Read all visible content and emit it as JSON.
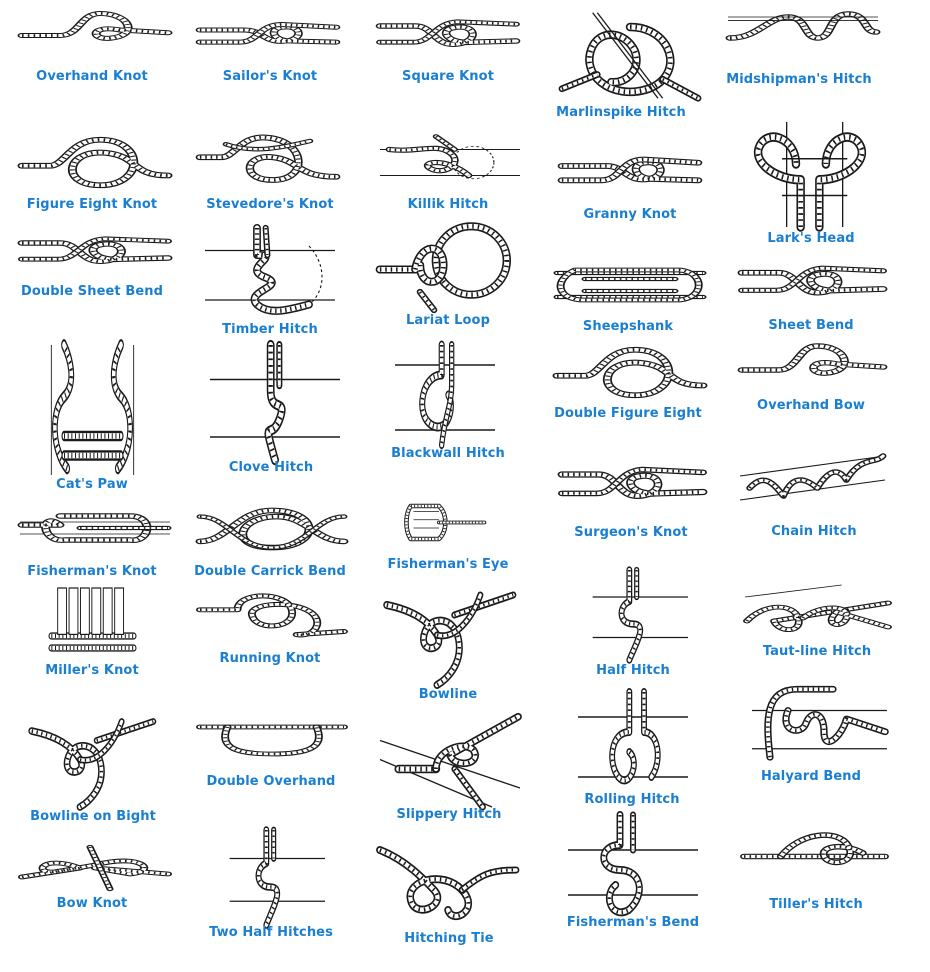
{
  "page_title": "",
  "knots": [
    {
      "label": "Overhand Knot",
      "icon": "overhand-knot-icon"
    },
    {
      "label": "Sailor's Knot",
      "icon": "sailors-knot-icon"
    },
    {
      "label": "Square Knot",
      "icon": "square-knot-icon"
    },
    {
      "label": "Marlinspike Hitch",
      "icon": "marlinspike-hitch-icon"
    },
    {
      "label": "Midshipman's Hitch",
      "icon": "midshipmans-hitch-icon"
    },
    {
      "label": "Figure Eight Knot",
      "icon": "figure-eight-knot-icon"
    },
    {
      "label": "Stevedore's Knot",
      "icon": "stevedores-knot-icon"
    },
    {
      "label": "Killik Hitch",
      "icon": "killik-hitch-icon"
    },
    {
      "label": "Granny Knot",
      "icon": "granny-knot-icon"
    },
    {
      "label": "Lark's Head",
      "icon": "larks-head-icon"
    },
    {
      "label": "Double Sheet Bend",
      "icon": "double-sheet-bend-icon"
    },
    {
      "label": "Timber Hitch",
      "icon": "timber-hitch-icon"
    },
    {
      "label": "Lariat Loop",
      "icon": "lariat-loop-icon"
    },
    {
      "label": "Sheepshank",
      "icon": "sheepshank-icon"
    },
    {
      "label": "Sheet Bend",
      "icon": "sheet-bend-icon"
    },
    {
      "label": "Cat's Paw",
      "icon": "cats-paw-icon"
    },
    {
      "label": "Clove Hitch",
      "icon": "clove-hitch-icon"
    },
    {
      "label": "Blackwall Hitch",
      "icon": "blackwall-hitch-icon"
    },
    {
      "label": "Double Figure Eight",
      "icon": "double-figure-eight-icon"
    },
    {
      "label": "Overhand Bow",
      "icon": "overhand-bow-icon"
    },
    {
      "label": "Fisherman's Knot",
      "icon": "fishermans-knot-icon"
    },
    {
      "label": "Double Carrick Bend",
      "icon": "double-carrick-bend-icon"
    },
    {
      "label": "Fisherman's Eye",
      "icon": "fishermans-eye-icon"
    },
    {
      "label": "Surgeon's Knot",
      "icon": "surgeons-knot-icon"
    },
    {
      "label": "Chain Hitch",
      "icon": "chain-hitch-icon"
    },
    {
      "label": "Miller's Knot",
      "icon": "millers-knot-icon"
    },
    {
      "label": "Running Knot",
      "icon": "running-knot-icon"
    },
    {
      "label": "Bowline",
      "icon": "bowline-icon"
    },
    {
      "label": "Half Hitch",
      "icon": "half-hitch-icon"
    },
    {
      "label": "Taut-line Hitch",
      "icon": "taut-line-hitch-icon"
    },
    {
      "label": "Bowline on Bight",
      "icon": "bowline-on-bight-icon"
    },
    {
      "label": "Double Overhand",
      "icon": "double-overhand-icon"
    },
    {
      "label": "Slippery Hitch",
      "icon": "slippery-hitch-icon"
    },
    {
      "label": "Rolling Hitch",
      "icon": "rolling-hitch-icon"
    },
    {
      "label": "Halyard Bend",
      "icon": "halyard-bend-icon"
    },
    {
      "label": "Bow Knot",
      "icon": "bow-knot-icon"
    },
    {
      "label": "Two Half Hitches",
      "icon": "two-half-hitches-icon"
    },
    {
      "label": "Hitching Tie",
      "icon": "hitching-tie-icon"
    },
    {
      "label": "Fisherman's Bend",
      "icon": "fishermans-bend-icon"
    },
    {
      "label": "Tiller's Hitch",
      "icon": "tillers-hitch-icon"
    }
  ],
  "colors": {
    "label": "#1a7fd0",
    "rope": "#1a1a1a",
    "rope_fill": "#ffffff",
    "background": "#ffffff"
  }
}
